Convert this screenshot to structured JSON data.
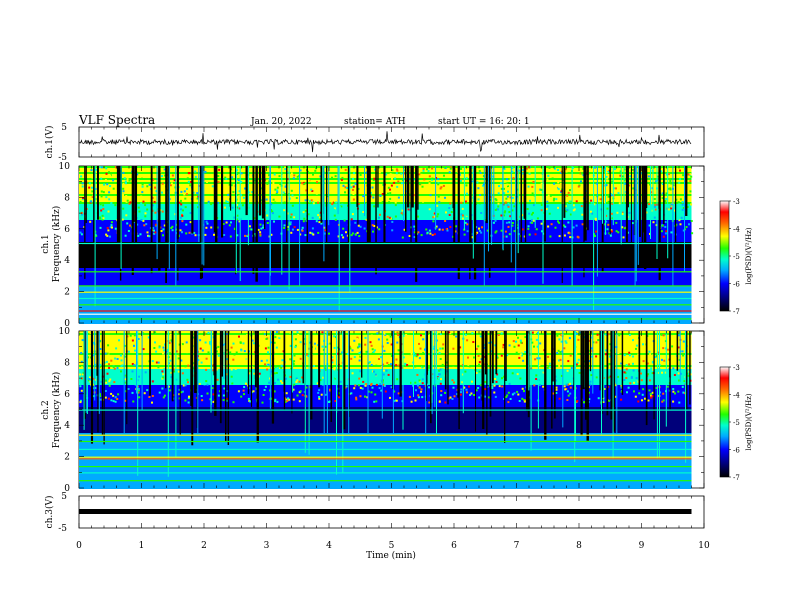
{
  "header": {
    "title": "VLF  Spectra",
    "date": "Jan. 20, 2022",
    "station": "station= ATH",
    "start": "start  UT  =    16: 20: 1"
  },
  "panels": {
    "ch1_wave_label": "ch.1(V)",
    "ch1_spec_label1": "ch.1",
    "ch1_spec_label2": "Frequency  (kHz)",
    "ch2_spec_label1": "ch.2",
    "ch2_spec_label2": "Frequency  (kHz)",
    "ch3_wave_label": "ch.3(V)",
    "colorbar_label": "log(PSD)(V²/Hz)"
  },
  "chart_data": {
    "type": "heatmap",
    "title": "VLF  Spectra",
    "xlabel": "Time  (min)",
    "xlim": [
      0,
      10
    ],
    "x_ticks": [
      "0",
      "1",
      "2",
      "3",
      "4",
      "5",
      "6",
      "7",
      "8",
      "9",
      "10"
    ],
    "data_end_min": 9.8,
    "waveform_ylim": [
      -5,
      5
    ],
    "waveform_ticks": [
      "5",
      "-5"
    ],
    "spectrogram_ylim_khz": [
      0,
      10
    ],
    "spectrogram_ticks": [
      "0",
      "2",
      "4",
      "6",
      "8",
      "10"
    ],
    "colorbar_range": [
      -7,
      -3
    ],
    "colorbar_ticks": [
      "-3",
      "-4",
      "-5",
      "-6",
      "-7"
    ],
    "colormap": [
      "#000000",
      "#00007a",
      "#0000ff",
      "#00aaff",
      "#00ffcc",
      "#22ff00",
      "#ffff00",
      "#ff6600",
      "#ff0000",
      "#ffffff"
    ]
  }
}
